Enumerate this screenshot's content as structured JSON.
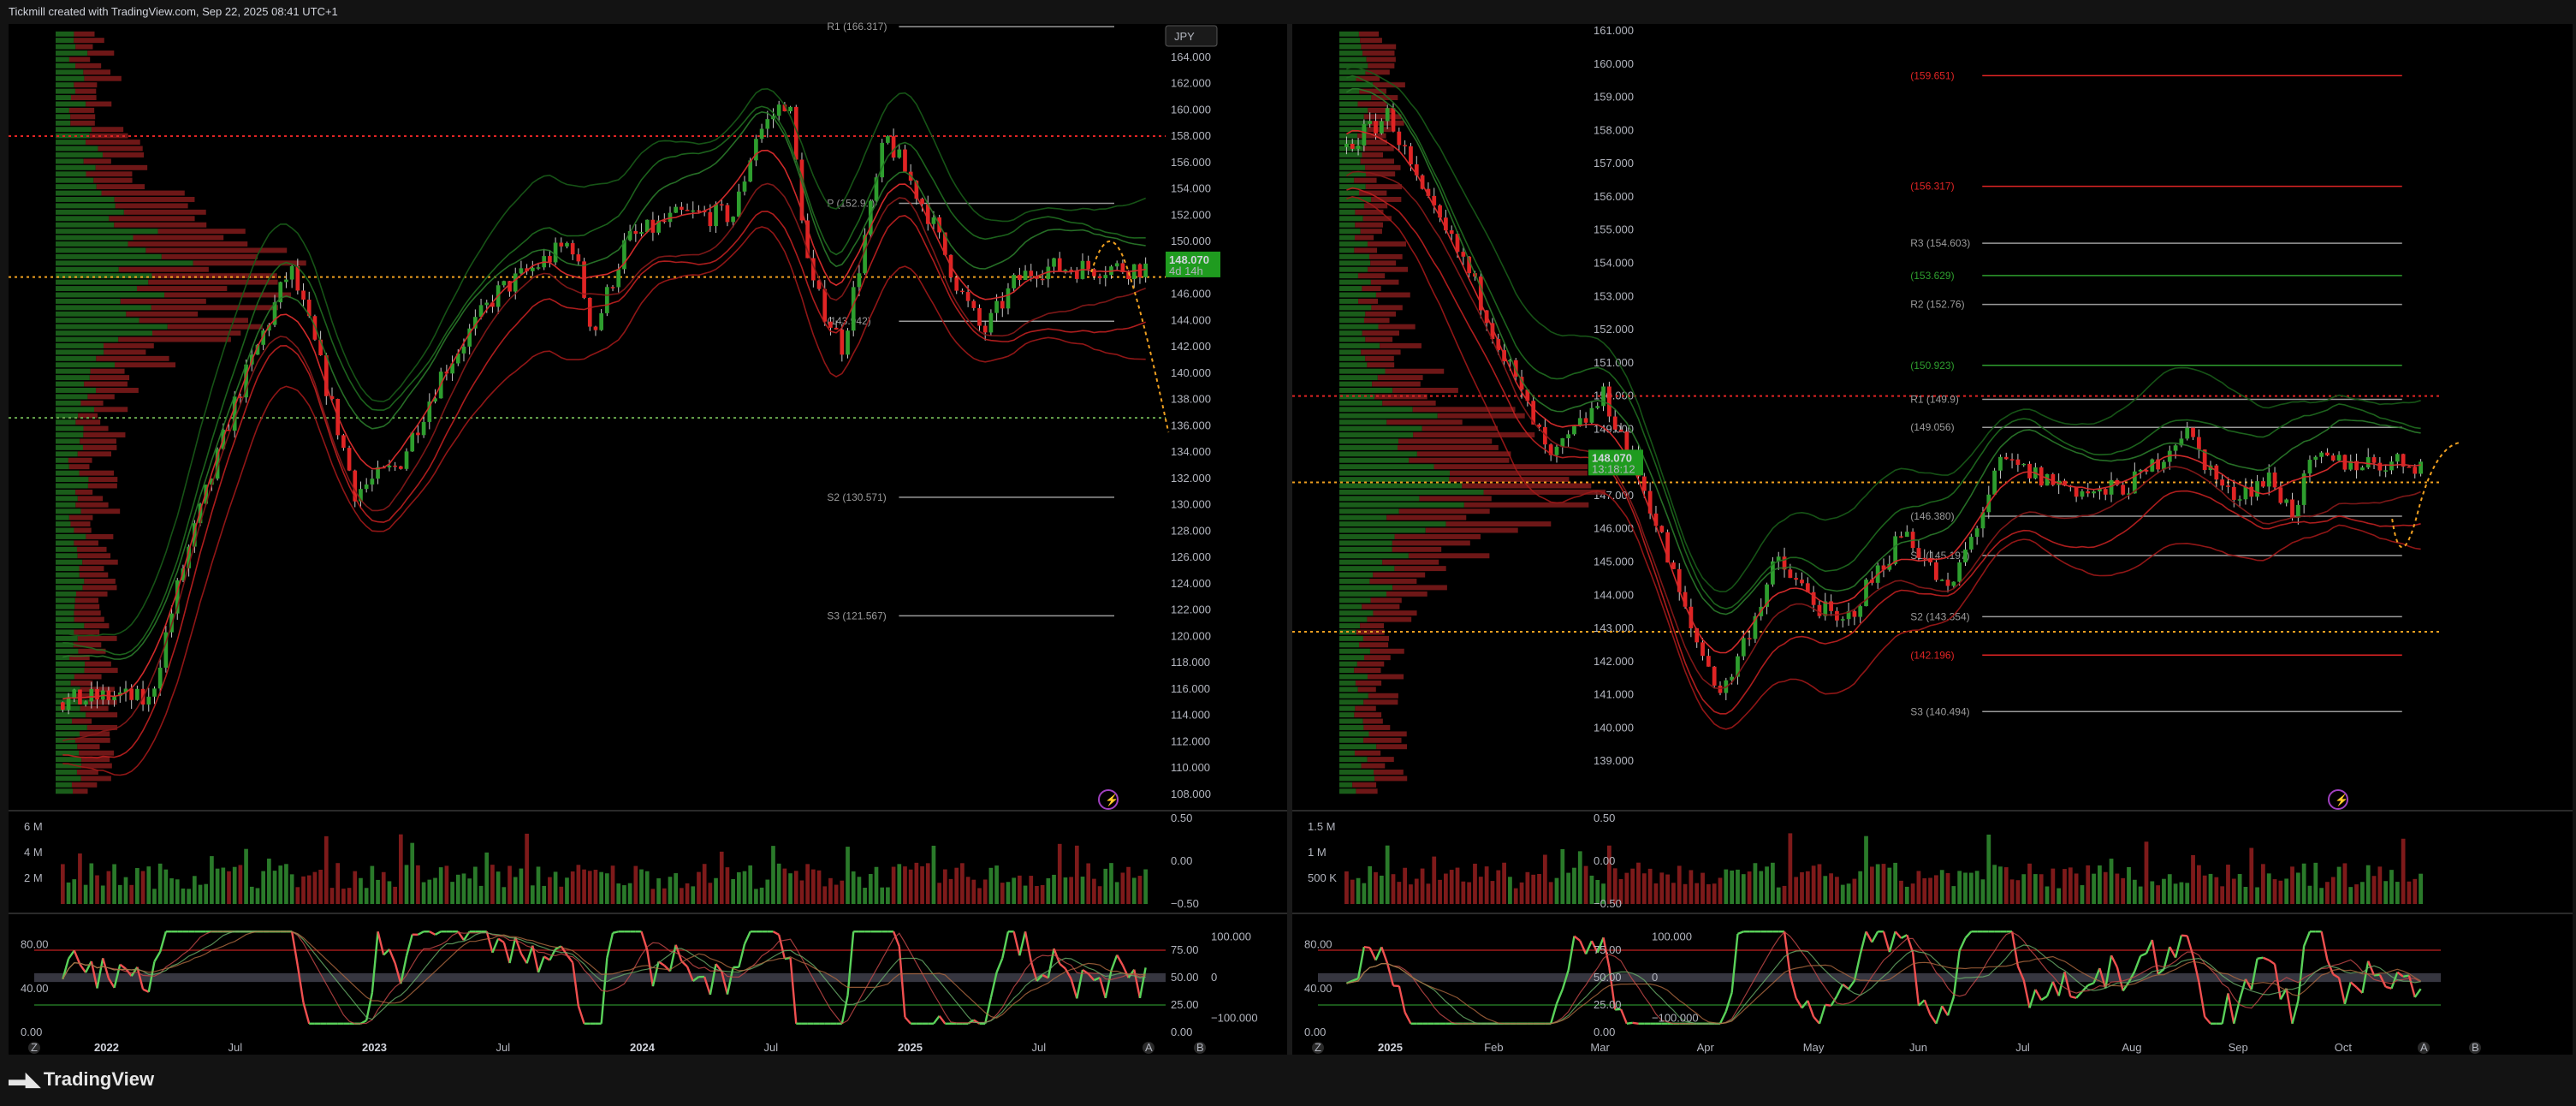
{
  "header": {
    "text": "Tickmill created with TradingView.com, Sep 22, 2025 08:41 UTC+1"
  },
  "footer": {
    "brand": "TradingView",
    "icon": "tradingview-logo-icon"
  },
  "colors": {
    "bg": "#000000",
    "up": "#2e9e2e",
    "down": "#e02424",
    "orange": "#f0a020",
    "grid": "#1e1e1e",
    "label_green": "#1f9b1f",
    "pivot_line": "#9a9a9a"
  },
  "chart_data": [
    {
      "panel": "left",
      "type": "candlestick",
      "timeframe": "weekly",
      "currency": "JPY",
      "last_price": "148.070",
      "countdown": "4d 14h",
      "price_range": [
        108,
        166
      ],
      "y_ticks": [
        "164.000",
        "162.000",
        "160.000",
        "158.000",
        "156.000",
        "154.000",
        "152.000",
        "150.000",
        "148.000",
        "146.000",
        "144.000",
        "142.000",
        "140.000",
        "138.000",
        "136.000",
        "134.000",
        "132.000",
        "130.000",
        "128.000",
        "126.000",
        "124.000",
        "122.000",
        "120.000",
        "118.000",
        "116.000",
        "114.000",
        "112.000",
        "110.000",
        "108.000"
      ],
      "x_ticks": [
        {
          "label": "2022",
          "bold": true
        },
        {
          "label": "Jul",
          "bold": false
        },
        {
          "label": "2023",
          "bold": true
        },
        {
          "label": "Jul",
          "bold": false
        },
        {
          "label": "2024",
          "bold": true
        },
        {
          "label": "Jul",
          "bold": false
        },
        {
          "label": "2025",
          "bold": true
        },
        {
          "label": "Jul",
          "bold": false
        }
      ],
      "price_anchors": [
        [
          0,
          115
        ],
        [
          0.05,
          115.5
        ],
        [
          0.08,
          115
        ],
        [
          0.11,
          125
        ],
        [
          0.16,
          138
        ],
        [
          0.21,
          148
        ],
        [
          0.23,
          143
        ],
        [
          0.27,
          131
        ],
        [
          0.31,
          133
        ],
        [
          0.35,
          140
        ],
        [
          0.4,
          146
        ],
        [
          0.47,
          150
        ],
        [
          0.49,
          143
        ],
        [
          0.52,
          150
        ],
        [
          0.57,
          152
        ],
        [
          0.62,
          152
        ],
        [
          0.64,
          158
        ],
        [
          0.67,
          161
        ],
        [
          0.69,
          147
        ],
        [
          0.72,
          142
        ],
        [
          0.76,
          158
        ],
        [
          0.8,
          152
        ],
        [
          0.83,
          146
        ],
        [
          0.85,
          143
        ],
        [
          0.88,
          147
        ],
        [
          0.9,
          148
        ],
        [
          1.0,
          148
        ]
      ],
      "pivots": [
        {
          "label": "R1 (166.317)",
          "value": 166.317,
          "color": "#9a9a9a"
        },
        {
          "label": "P (152.9..)",
          "value": 152.9,
          "color": "#9a9a9a"
        },
        {
          "label": "(143.942)",
          "value": 143.942,
          "color": "#9a9a9a"
        },
        {
          "label": "S2 (130.571)",
          "value": 130.571,
          "color": "#9a9a9a"
        },
        {
          "label": "S3 (121.567)",
          "value": 121.567,
          "color": "#9a9a9a"
        }
      ],
      "hlines": [
        {
          "value": 158.0,
          "color": "#e02424"
        },
        {
          "value": 147.3,
          "color": "#f0a020"
        },
        {
          "value": 136.6,
          "color": "#6aa84f"
        }
      ],
      "volume": {
        "ticks": [
          "6 M",
          "4 M",
          "2 M"
        ]
      },
      "volume_osc_ticks": [
        "0.50",
        "0.00",
        "−0.50"
      ],
      "rsi": {
        "left_ticks": [
          "80.00",
          "40.00",
          "0.00"
        ],
        "right_ticks": [
          "75.00",
          "50.00",
          "25.00",
          "0.00"
        ],
        "far_ticks": [
          "100.000",
          "0",
          "−100.000"
        ]
      }
    },
    {
      "panel": "right",
      "type": "candlestick",
      "timeframe": "daily",
      "currency": "JPY",
      "last_price": "148.070",
      "countdown": "13:18:12",
      "price_range": [
        138,
        161
      ],
      "y_ticks": [
        "161.000",
        "160.000",
        "159.000",
        "158.000",
        "157.000",
        "156.000",
        "155.000",
        "154.000",
        "153.000",
        "152.000",
        "151.000",
        "150.000",
        "149.000",
        "148.000",
        "147.000",
        "146.000",
        "145.000",
        "144.000",
        "143.000",
        "142.000",
        "141.000",
        "140.000",
        "139.000"
      ],
      "x_ticks": [
        {
          "label": "2025",
          "bold": true
        },
        {
          "label": "Feb",
          "bold": false
        },
        {
          "label": "Mar",
          "bold": false
        },
        {
          "label": "Apr",
          "bold": false
        },
        {
          "label": "May",
          "bold": false
        },
        {
          "label": "Jun",
          "bold": false
        },
        {
          "label": "Jul",
          "bold": false
        },
        {
          "label": "Aug",
          "bold": false
        },
        {
          "label": "Sep",
          "bold": false
        },
        {
          "label": "Oct",
          "bold": false
        }
      ],
      "price_anchors": [
        [
          0,
          157.5
        ],
        [
          0.04,
          158.5
        ],
        [
          0.07,
          156
        ],
        [
          0.11,
          154
        ],
        [
          0.15,
          151
        ],
        [
          0.19,
          148
        ],
        [
          0.24,
          150
        ],
        [
          0.28,
          147
        ],
        [
          0.32,
          143
        ],
        [
          0.35,
          141
        ],
        [
          0.4,
          145
        ],
        [
          0.46,
          143
        ],
        [
          0.52,
          146
        ],
        [
          0.56,
          144
        ],
        [
          0.61,
          148
        ],
        [
          0.65,
          147.5
        ],
        [
          0.7,
          147
        ],
        [
          0.74,
          147.5
        ],
        [
          0.78,
          149
        ],
        [
          0.82,
          147
        ],
        [
          0.86,
          147.5
        ],
        [
          0.88,
          146.5
        ],
        [
          0.9,
          148
        ],
        [
          1.0,
          148
        ]
      ],
      "pivots": [
        {
          "label": "(159.651)",
          "value": 159.651,
          "color": "#e02424"
        },
        {
          "label": "(156.317)",
          "value": 156.317,
          "color": "#e02424"
        },
        {
          "label": "(153.629)",
          "value": 153.629,
          "color": "#2e9e2e"
        },
        {
          "label": "R3 (154.603)",
          "value": 154.603,
          "color": "#9a9a9a"
        },
        {
          "label": "R2 (152.76)",
          "value": 152.76,
          "color": "#9a9a9a"
        },
        {
          "label": "(150.923)",
          "value": 150.923,
          "color": "#2e9e2e"
        },
        {
          "label": "R1 (149.9)",
          "value": 149.9,
          "color": "#9a9a9a"
        },
        {
          "label": "(149.056)",
          "value": 149.056,
          "color": "#9a9a9a"
        },
        {
          "label": "(146.380)",
          "value": 146.38,
          "color": "#9a9a9a"
        },
        {
          "label": "S1 (145.197)",
          "value": 145.197,
          "color": "#9a9a9a"
        },
        {
          "label": "S2 (143.354)",
          "value": 143.354,
          "color": "#9a9a9a"
        },
        {
          "label": "(142.196)",
          "value": 142.196,
          "color": "#e02424"
        },
        {
          "label": "S3 (140.494)",
          "value": 140.494,
          "color": "#9a9a9a"
        }
      ],
      "hlines": [
        {
          "value": 150.0,
          "color": "#e02424"
        },
        {
          "value": 147.4,
          "color": "#f0a020"
        },
        {
          "value": 142.9,
          "color": "#f0a020"
        }
      ],
      "volume": {
        "ticks": [
          "1.5 M",
          "1 M",
          "500 K"
        ]
      },
      "volume_osc_ticks": [
        "0.50",
        "0.00",
        "−0.50"
      ],
      "rsi": {
        "left_ticks": [
          "80.00",
          "40.00",
          "0.00"
        ],
        "right_ticks": [
          "75.00",
          "50.00",
          "25.00",
          "0.00"
        ],
        "far_ticks": [
          "100.000",
          "0",
          "−100.000"
        ]
      }
    }
  ],
  "corner_letters": {
    "z": "Z",
    "a": "A",
    "b": "B"
  }
}
